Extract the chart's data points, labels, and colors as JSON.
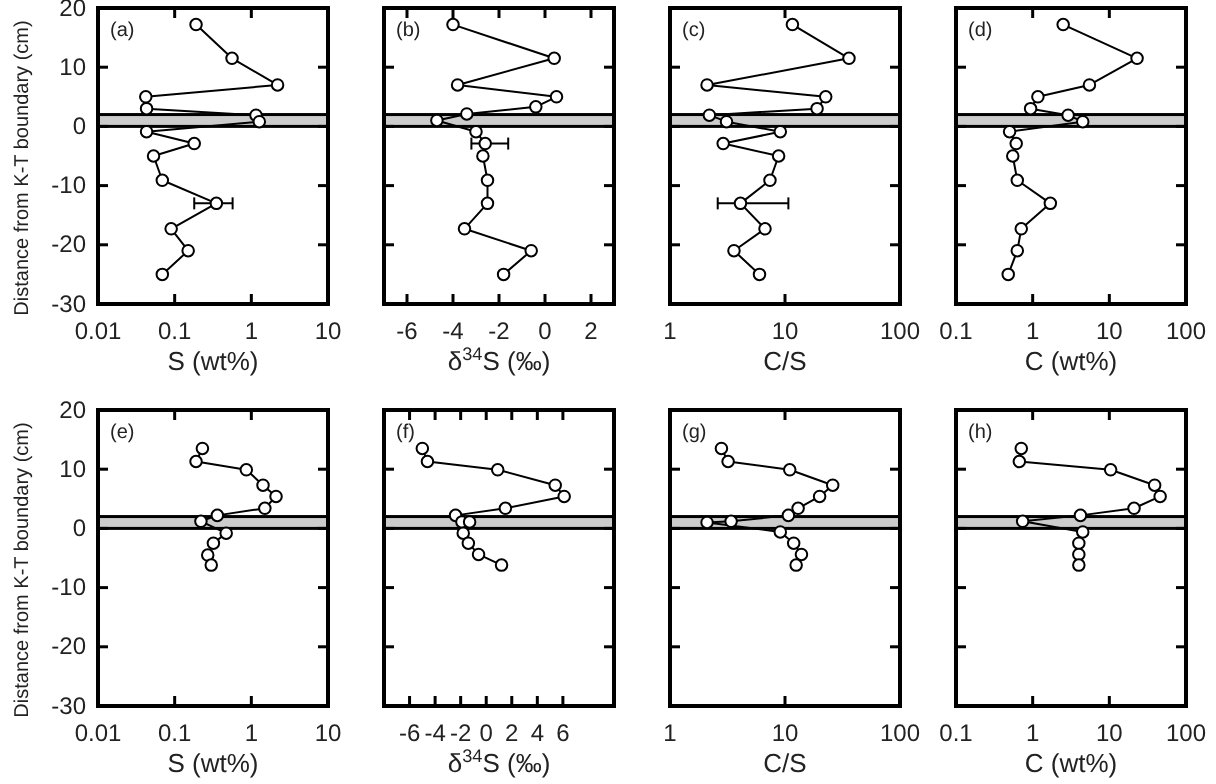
{
  "chart_data": [
    {
      "type": "line",
      "annotations": [
        "(a)"
      ],
      "xlabel": "S (wt%)",
      "ylabel": "Distance from K-T boundary (cm)",
      "log": "x",
      "xlim": [
        0.01,
        10
      ],
      "xticks": [
        0.01,
        0.1,
        1,
        10
      ],
      "ylim": [
        -30,
        20
      ],
      "yticks": [
        -30,
        -20,
        -10,
        0,
        10,
        20
      ],
      "bands": [
        {
          "axis": "y",
          "from": 0,
          "to": 2,
          "color": "#cccccc"
        }
      ],
      "marker": "circle",
      "line_style": "solid",
      "series": [
        {
          "color": "#000000",
          "x": [
            0.19,
            0.56,
            2.2,
            0.042,
            0.043,
            1.15,
            1.27,
            0.043,
            0.18,
            0.053,
            0.069,
            0.35,
            0.09,
            0.15,
            0.069
          ],
          "values": [
            17.2,
            11.5,
            7,
            5,
            3,
            1.9,
            0.8,
            -0.9,
            -2.9,
            -5,
            -9.1,
            -13,
            -17.3,
            -21,
            -25
          ],
          "xerrors": [
            null,
            null,
            null,
            null,
            null,
            null,
            null,
            null,
            null,
            null,
            null,
            [
              0.18,
              0.57
            ],
            null,
            null,
            null
          ]
        }
      ]
    },
    {
      "type": "line",
      "annotations": [
        "(b)"
      ],
      "xlabel": "δ$^{34}$S (‰)",
      "tick_labels": "x",
      "xlim": [
        -7,
        3
      ],
      "xticks": [
        -6,
        -4,
        -2,
        0,
        2
      ],
      "ylim": [
        -30,
        20
      ],
      "yticks": [
        -30,
        -20,
        -10,
        0,
        10,
        20
      ],
      "bands": [
        {
          "axis": "y",
          "from": 0,
          "to": 2,
          "color": "#cccccc"
        }
      ],
      "marker": "circle",
      "line_style": "solid",
      "series": [
        {
          "color": "#000000",
          "x": [
            -4.0,
            0.4,
            -3.8,
            0.5,
            -0.4,
            -3.4,
            -4.7,
            -3.0,
            -2.6,
            -2.7,
            -2.5,
            -2.5,
            -3.5,
            -0.6,
            -1.8
          ],
          "values": [
            17.2,
            11.5,
            7,
            5,
            3.3,
            2.1,
            1,
            -0.9,
            -2.9,
            -5,
            -9.1,
            -13,
            -17.3,
            -21,
            -25
          ],
          "xerrors": [
            null,
            null,
            null,
            null,
            null,
            null,
            null,
            null,
            [
              -3.2,
              -1.6
            ],
            null,
            null,
            null,
            null,
            null,
            null
          ]
        }
      ]
    },
    {
      "type": "line",
      "annotations": [
        "(c)"
      ],
      "xlabel": "C/S",
      "tick_labels": "x",
      "log": "x",
      "xlim": [
        1,
        100
      ],
      "xticks": [
        1,
        10,
        100
      ],
      "ylim": [
        -30,
        20
      ],
      "yticks": [
        -30,
        -20,
        -10,
        0,
        10,
        20
      ],
      "bands": [
        {
          "axis": "y",
          "from": 0,
          "to": 2,
          "color": "#cccccc"
        }
      ],
      "marker": "circle",
      "line_style": "solid",
      "series": [
        {
          "color": "#000000",
          "x": [
            11.6,
            36,
            2.1,
            22.6,
            19,
            2.2,
            3.1,
            9.1,
            2.9,
            8.8,
            7.4,
            4.1,
            6.7,
            3.6,
            6.0
          ],
          "values": [
            17.2,
            11.5,
            7,
            5,
            3,
            1.9,
            0.8,
            -0.9,
            -2.9,
            -5,
            -9.1,
            -13,
            -17.3,
            -21,
            -25
          ],
          "xerrors": [
            null,
            null,
            null,
            null,
            null,
            null,
            null,
            null,
            null,
            null,
            null,
            [
              2.6,
              10.7
            ],
            null,
            null,
            null
          ]
        }
      ]
    },
    {
      "type": "line",
      "annotations": [
        "(d)"
      ],
      "xlabel": "C (wt%)",
      "tick_labels": "x",
      "log": "x",
      "xlim": [
        0.1,
        100
      ],
      "xticks": [
        0.1,
        1,
        10,
        100
      ],
      "ylim": [
        -30,
        20
      ],
      "yticks": [
        -30,
        -20,
        -10,
        0,
        10,
        20
      ],
      "bands": [
        {
          "axis": "y",
          "from": 0,
          "to": 2,
          "color": "#cccccc"
        }
      ],
      "marker": "circle",
      "line_style": "solid",
      "series": [
        {
          "color": "#000000",
          "x": [
            2.5,
            23,
            5.5,
            1.17,
            0.94,
            2.9,
            4.5,
            0.5,
            0.61,
            0.55,
            0.63,
            1.7,
            0.71,
            0.63,
            0.48
          ],
          "values": [
            17.2,
            11.5,
            7,
            5,
            3,
            1.9,
            0.8,
            -0.9,
            -2.9,
            -5,
            -9.1,
            -13,
            -17.3,
            -21,
            -25
          ]
        }
      ]
    },
    {
      "type": "line",
      "annotations": [
        "(e)"
      ],
      "xlabel": "S (wt%)",
      "ylabel": "Distance from K-T boundary (cm)",
      "log": "x",
      "xlim": [
        0.01,
        10
      ],
      "xticks": [
        0.01,
        0.1,
        1,
        10
      ],
      "ylim": [
        -30,
        20
      ],
      "yticks": [
        -30,
        -20,
        -10,
        0,
        10,
        20
      ],
      "bands": [
        {
          "axis": "y",
          "from": 0,
          "to": 2,
          "color": "#cccccc"
        }
      ],
      "marker": "circle",
      "line_style": "solid",
      "series": [
        {
          "color": "#000000",
          "x": [
            0.23,
            0.19,
            0.86,
            1.42,
            2.1,
            1.5,
            0.36,
            0.22,
            0.47,
            0.32,
            0.27,
            0.3
          ],
          "values": [
            13.5,
            11.3,
            9.9,
            7.3,
            5.4,
            3.4,
            2.2,
            1.2,
            -0.8,
            -2.5,
            -4.5,
            -6.2
          ]
        }
      ]
    },
    {
      "type": "line",
      "annotations": [
        "(f)"
      ],
      "xlabel": "δ$^{34}$S (‰)",
      "tick_labels": "x",
      "xlim": [
        -8,
        10
      ],
      "xticks": [
        -6,
        -4,
        -2,
        0,
        2,
        4,
        6
      ],
      "ylim": [
        -30,
        20
      ],
      "yticks": [
        -30,
        -20,
        -10,
        0,
        10,
        20
      ],
      "bands": [
        {
          "axis": "y",
          "from": 0,
          "to": 2,
          "color": "#cccccc"
        }
      ],
      "marker": "circle",
      "line_style": "solid",
      "series": [
        {
          "color": "#000000",
          "x": [
            -5.0,
            -4.6,
            0.9,
            5.4,
            6.1,
            1.5,
            -2.4,
            -1.9,
            -1.3,
            -1.8,
            -1.4,
            -0.6,
            1.2
          ],
          "values": [
            13.5,
            11.3,
            9.9,
            7.3,
            5.4,
            3.4,
            2.2,
            1.1,
            1.1,
            -0.8,
            -2.5,
            -4.4,
            -6.2
          ]
        }
      ]
    },
    {
      "type": "line",
      "annotations": [
        "(g)"
      ],
      "xlabel": "C/S",
      "tick_labels": "x",
      "log": "x",
      "xlim": [
        1,
        100
      ],
      "xticks": [
        1,
        10,
        100
      ],
      "ylim": [
        -30,
        20
      ],
      "yticks": [
        -30,
        -20,
        -10,
        0,
        10,
        20
      ],
      "bands": [
        {
          "axis": "y",
          "from": 0,
          "to": 2,
          "color": "#cccccc"
        }
      ],
      "marker": "circle",
      "line_style": "solid",
      "series": [
        {
          "color": "#000000",
          "x": [
            2.8,
            3.2,
            11,
            26,
            20,
            13,
            10.7,
            3.4,
            2.1,
            9.1,
            11.9,
            13.9,
            12.5
          ],
          "values": [
            13.5,
            11.3,
            9.9,
            7.3,
            5.4,
            3.4,
            2.2,
            1.2,
            1.0,
            -0.6,
            -2.5,
            -4.4,
            -6.2
          ]
        }
      ]
    },
    {
      "type": "line",
      "annotations": [
        "(h)"
      ],
      "xlabel": "C (wt%)",
      "tick_labels": "x",
      "log": "x",
      "xlim": [
        0.1,
        100
      ],
      "xticks": [
        0.1,
        1,
        10,
        100
      ],
      "ylim": [
        -30,
        20
      ],
      "yticks": [
        -30,
        -20,
        -10,
        0,
        10,
        20
      ],
      "bands": [
        {
          "axis": "y",
          "from": 0,
          "to": 2,
          "color": "#cccccc"
        }
      ],
      "marker": "circle",
      "line_style": "solid",
      "series": [
        {
          "color": "#000000",
          "x": [
            0.71,
            0.67,
            10.4,
            39,
            46,
            21,
            4.2,
            0.74,
            4.5,
            4.0,
            4.0,
            4.0
          ],
          "values": [
            13.5,
            11.3,
            9.9,
            7.3,
            5.4,
            3.4,
            2.2,
            1.2,
            -0.6,
            -2.5,
            -4.4,
            -6.2
          ]
        }
      ]
    }
  ]
}
